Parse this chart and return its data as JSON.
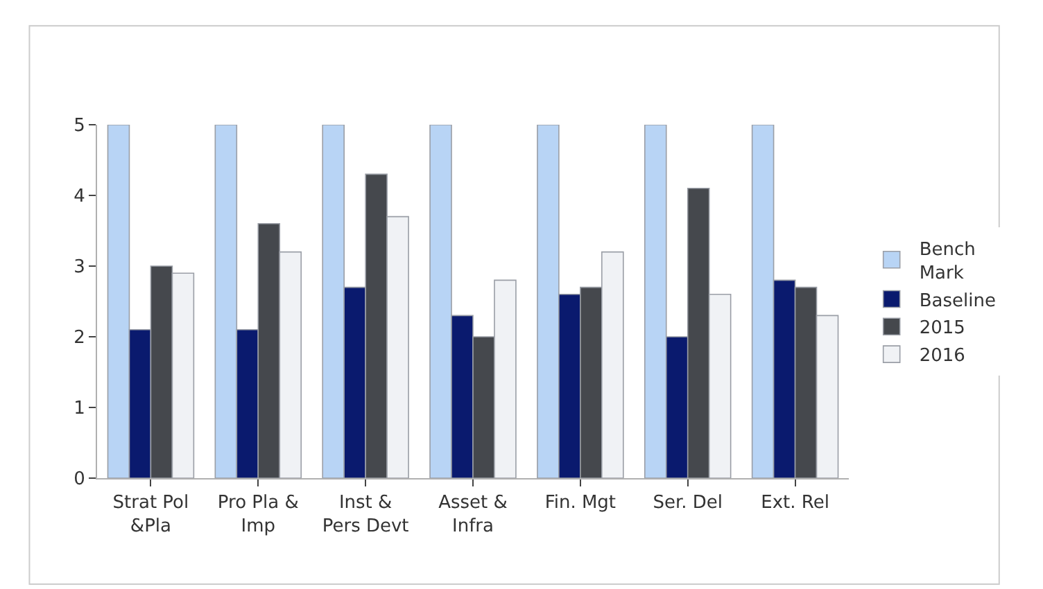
{
  "chart_data": {
    "type": "bar",
    "categories": [
      "Strat Pol &Pla",
      "Pro Pla & Imp",
      "Inst & Pers Devt",
      "Asset & Infra",
      "Fin. Mgt",
      "Ser. Del",
      "Ext. Rel"
    ],
    "series": [
      {
        "name": "Bench Mark",
        "color": "#b8d4f5",
        "values": [
          5,
          5,
          5,
          5,
          5,
          5,
          5
        ]
      },
      {
        "name": "Baseline",
        "color": "#0a1a6e",
        "values": [
          2.1,
          2.1,
          2.7,
          2.3,
          2.6,
          2.0,
          2.8
        ]
      },
      {
        "name": "2015",
        "color": "#45484d",
        "values": [
          3.0,
          3.6,
          4.3,
          2.0,
          2.7,
          4.1,
          2.7
        ]
      },
      {
        "name": "2016",
        "color": "#f0f2f5",
        "values": [
          2.9,
          3.2,
          3.7,
          2.8,
          3.2,
          2.6,
          2.3
        ]
      }
    ],
    "ylim": [
      0,
      5
    ],
    "yticks": [
      0,
      1,
      2,
      3,
      4,
      5
    ],
    "legend": "right"
  }
}
